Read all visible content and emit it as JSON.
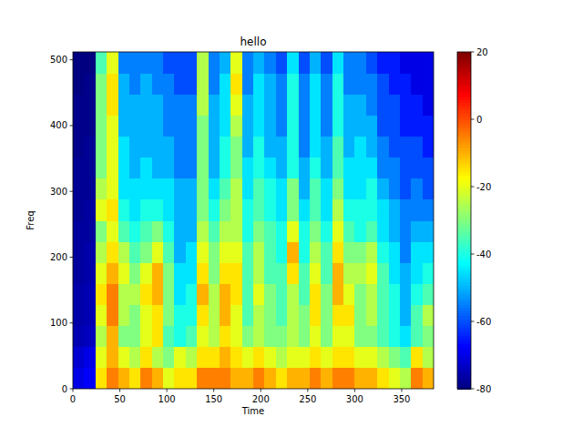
{
  "chart_data": {
    "type": "heatmap",
    "title": "hello",
    "x_label": "Time",
    "y_label": "Freq",
    "x_bins": [
      0,
      12,
      24,
      36,
      48,
      60,
      72,
      84,
      96,
      108,
      120,
      132,
      144,
      156,
      168,
      180,
      192,
      204,
      216,
      228,
      240,
      252,
      264,
      276,
      288,
      300,
      312,
      324,
      336,
      348,
      360,
      372,
      384
    ],
    "y_bins": [
      0,
      32,
      64,
      96,
      128,
      160,
      192,
      224,
      256,
      288,
      320,
      352,
      384,
      416,
      448,
      480,
      512
    ],
    "z": [
      [
        -70,
        -68,
        -15,
        -5,
        -10,
        -15,
        -5,
        -10,
        -20,
        -15,
        -15,
        -5,
        -5,
        -5,
        -10,
        -10,
        -5,
        -10,
        -15,
        -10,
        -10,
        -5,
        -10,
        -5,
        -5,
        -10,
        -10,
        -15,
        -20,
        -25,
        -5,
        -10
      ],
      [
        -72,
        -70,
        -20,
        -10,
        -20,
        -25,
        -15,
        -25,
        -30,
        -20,
        -25,
        -15,
        -15,
        -10,
        -15,
        -20,
        -15,
        -20,
        -25,
        -20,
        -20,
        -15,
        -20,
        -15,
        -15,
        -20,
        -20,
        -25,
        -30,
        -35,
        -15,
        -25
      ],
      [
        -75,
        -74,
        -25,
        -10,
        -30,
        -30,
        -20,
        -15,
        -35,
        -40,
        -35,
        -20,
        -25,
        -15,
        -20,
        -30,
        -25,
        -30,
        -30,
        -25,
        -30,
        -20,
        -30,
        -20,
        -20,
        -30,
        -30,
        -35,
        -40,
        -45,
        -35,
        -30
      ],
      [
        -76,
        -75,
        -20,
        -5,
        -25,
        -30,
        -20,
        -15,
        -30,
        -40,
        -40,
        -15,
        -25,
        -10,
        -20,
        -35,
        -25,
        -30,
        -35,
        -25,
        -30,
        -15,
        -30,
        -15,
        -15,
        -30,
        -25,
        -35,
        -40,
        -50,
        -35,
        -25
      ],
      [
        -76,
        -75,
        -15,
        -5,
        -25,
        -25,
        -15,
        -10,
        -30,
        -45,
        -40,
        -10,
        -25,
        -10,
        -15,
        -35,
        -20,
        -30,
        -35,
        -25,
        -35,
        -15,
        -30,
        -10,
        -20,
        -30,
        -25,
        -35,
        -40,
        -50,
        -40,
        -35
      ],
      [
        -77,
        -76,
        -20,
        -10,
        -20,
        -30,
        -20,
        -10,
        -30,
        -45,
        -45,
        -15,
        -30,
        -15,
        -15,
        -35,
        -25,
        -35,
        -35,
        -15,
        -35,
        -20,
        -35,
        -10,
        -25,
        -25,
        -20,
        -35,
        -45,
        -50,
        -45,
        -40
      ],
      [
        -77,
        -76,
        -25,
        -15,
        -25,
        -35,
        -30,
        -20,
        -35,
        -50,
        -45,
        -20,
        -30,
        -20,
        -20,
        -35,
        -25,
        -35,
        -40,
        -10,
        -40,
        -25,
        -35,
        -15,
        -30,
        -30,
        -25,
        -40,
        -45,
        -55,
        -45,
        -45
      ],
      [
        -77,
        -77,
        -30,
        -20,
        -35,
        -40,
        -35,
        -30,
        -40,
        -50,
        -50,
        -25,
        -35,
        -25,
        -25,
        -40,
        -30,
        -35,
        -40,
        -20,
        -40,
        -30,
        -40,
        -20,
        -35,
        -40,
        -35,
        -45,
        -50,
        -55,
        -50,
        -50
      ],
      [
        -78,
        -77,
        -20,
        -15,
        -40,
        -45,
        -40,
        -40,
        -45,
        -50,
        -50,
        -30,
        -40,
        -30,
        -25,
        -40,
        -35,
        -40,
        -45,
        -30,
        -45,
        -35,
        -45,
        -25,
        -40,
        -40,
        -40,
        -45,
        -50,
        -55,
        -55,
        -55
      ],
      [
        -78,
        -78,
        -25,
        -20,
        -45,
        -45,
        -45,
        -45,
        -45,
        -50,
        -50,
        -30,
        -45,
        -35,
        -25,
        -45,
        -35,
        -40,
        -45,
        -30,
        -50,
        -35,
        -45,
        -30,
        -45,
        -45,
        -40,
        -50,
        -55,
        -60,
        -55,
        -60
      ],
      [
        -78,
        -78,
        -30,
        -20,
        -45,
        -50,
        -45,
        -50,
        -50,
        -55,
        -55,
        -30,
        -50,
        -40,
        -30,
        -45,
        -40,
        -45,
        -50,
        -40,
        -50,
        -40,
        -50,
        -35,
        -45,
        -45,
        -45,
        -55,
        -55,
        -60,
        -60,
        -60
      ],
      [
        -79,
        -78,
        -30,
        -20,
        -45,
        -50,
        -50,
        -50,
        -50,
        -55,
        -55,
        -30,
        -50,
        -40,
        -30,
        -50,
        -40,
        -50,
        -50,
        -40,
        -55,
        -45,
        -50,
        -35,
        -50,
        -45,
        -50,
        -55,
        -60,
        -60,
        -60,
        -65
      ],
      [
        -79,
        -79,
        -30,
        -20,
        -50,
        -50,
        -50,
        -50,
        -55,
        -55,
        -55,
        -30,
        -50,
        -45,
        -25,
        -50,
        -45,
        -50,
        -55,
        -40,
        -55,
        -45,
        -55,
        -40,
        -50,
        -50,
        -50,
        -60,
        -60,
        -65,
        -65,
        -65
      ],
      [
        -79,
        -79,
        -30,
        -15,
        -50,
        -50,
        -50,
        -50,
        -55,
        -55,
        -55,
        -25,
        -50,
        -45,
        -20,
        -50,
        -45,
        -50,
        -55,
        -40,
        -55,
        -45,
        -55,
        -40,
        -50,
        -50,
        -55,
        -60,
        -60,
        -65,
        -65,
        -70
      ],
      [
        -80,
        -79,
        -30,
        -15,
        -50,
        -55,
        -50,
        -55,
        -55,
        -60,
        -60,
        -25,
        -55,
        -45,
        -15,
        -55,
        -45,
        -50,
        -55,
        -40,
        -55,
        -45,
        -55,
        -40,
        -55,
        -55,
        -55,
        -60,
        -65,
        -65,
        -70,
        -70
      ],
      [
        -80,
        -80,
        -35,
        -20,
        -55,
        -55,
        -55,
        -55,
        -60,
        -60,
        -60,
        -25,
        -55,
        -50,
        -20,
        -55,
        -50,
        -55,
        -60,
        -45,
        -60,
        -50,
        -60,
        -45,
        -55,
        -55,
        -60,
        -65,
        -65,
        -70,
        -70,
        -70
      ]
    ],
    "xlim": [
      0,
      384
    ],
    "ylim": [
      0,
      512
    ],
    "xticks": [
      0,
      50,
      100,
      150,
      200,
      250,
      300,
      350
    ],
    "yticks": [
      0,
      100,
      200,
      300,
      400,
      500
    ],
    "colorbar": {
      "range": [
        -80,
        20
      ],
      "ticks": [
        -80,
        -60,
        -40,
        -20,
        0,
        20
      ]
    }
  }
}
